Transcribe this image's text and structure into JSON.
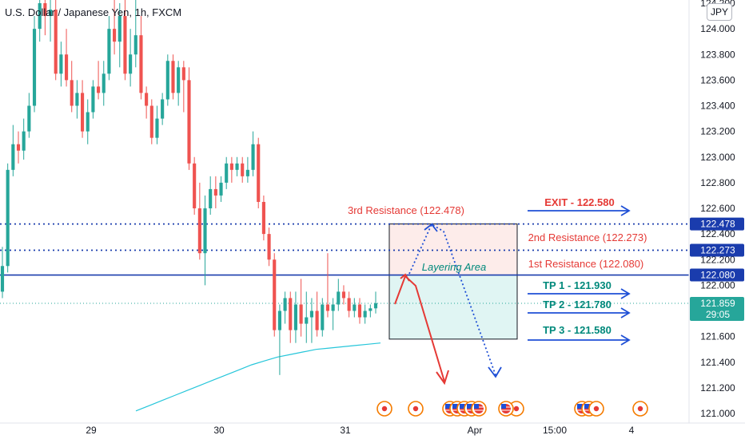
{
  "header": {
    "title": "U.S. Dollar / Japanese Yen, 1h, FXCM",
    "currency": "JPY"
  },
  "chart_data": {
    "type": "candlestick",
    "symbol": "USDJPY",
    "timeframe": "1h",
    "ylim": [
      121.0,
      124.2
    ],
    "y_ticks": [
      "121.000",
      "121.200",
      "121.400",
      "121.600",
      "121.800",
      "122.000",
      "122.200",
      "122.400",
      "122.600",
      "122.800",
      "123.000",
      "123.200",
      "123.400",
      "123.600",
      "123.800",
      "124.000",
      "124.200"
    ],
    "x_ticks": [
      "29",
      "30",
      "31",
      "Apr",
      "15:00",
      "4"
    ],
    "candles": [
      {
        "o": 121.95,
        "h": 122.3,
        "l": 121.9,
        "c": 122.15
      },
      {
        "o": 122.15,
        "h": 122.95,
        "l": 122.1,
        "c": 122.9
      },
      {
        "o": 122.9,
        "h": 123.25,
        "l": 122.85,
        "c": 123.1
      },
      {
        "o": 123.1,
        "h": 123.2,
        "l": 122.95,
        "c": 123.05
      },
      {
        "o": 123.05,
        "h": 123.3,
        "l": 122.98,
        "c": 123.2
      },
      {
        "o": 123.2,
        "h": 123.5,
        "l": 123.15,
        "c": 123.4
      },
      {
        "o": 123.4,
        "h": 124.1,
        "l": 123.35,
        "c": 124.0
      },
      {
        "o": 124.0,
        "h": 124.3,
        "l": 123.9,
        "c": 124.2
      },
      {
        "o": 124.2,
        "h": 124.3,
        "l": 123.95,
        "c": 124.1
      },
      {
        "o": 124.1,
        "h": 124.3,
        "l": 123.9,
        "c": 124.15
      },
      {
        "o": 124.15,
        "h": 124.25,
        "l": 123.6,
        "c": 123.65
      },
      {
        "o": 123.65,
        "h": 123.9,
        "l": 123.55,
        "c": 123.8
      },
      {
        "o": 123.8,
        "h": 124.0,
        "l": 123.55,
        "c": 123.6
      },
      {
        "o": 123.6,
        "h": 123.75,
        "l": 123.35,
        "c": 123.4
      },
      {
        "o": 123.4,
        "h": 123.6,
        "l": 123.3,
        "c": 123.5
      },
      {
        "o": 123.5,
        "h": 123.6,
        "l": 123.15,
        "c": 123.2
      },
      {
        "o": 123.2,
        "h": 123.45,
        "l": 123.1,
        "c": 123.35
      },
      {
        "o": 123.35,
        "h": 123.6,
        "l": 123.3,
        "c": 123.55
      },
      {
        "o": 123.55,
        "h": 123.75,
        "l": 123.45,
        "c": 123.5
      },
      {
        "o": 123.5,
        "h": 123.75,
        "l": 123.4,
        "c": 123.65
      },
      {
        "o": 123.65,
        "h": 124.1,
        "l": 123.6,
        "c": 124.0
      },
      {
        "o": 124.0,
        "h": 124.3,
        "l": 123.8,
        "c": 123.9
      },
      {
        "o": 123.9,
        "h": 124.2,
        "l": 123.7,
        "c": 124.1
      },
      {
        "o": 124.1,
        "h": 124.3,
        "l": 123.6,
        "c": 123.65
      },
      {
        "o": 123.65,
        "h": 124.0,
        "l": 123.55,
        "c": 123.8
      },
      {
        "o": 123.8,
        "h": 124.25,
        "l": 123.7,
        "c": 123.95
      },
      {
        "o": 123.95,
        "h": 124.1,
        "l": 123.45,
        "c": 123.5
      },
      {
        "o": 123.5,
        "h": 123.55,
        "l": 123.3,
        "c": 123.4
      },
      {
        "o": 123.4,
        "h": 123.45,
        "l": 123.1,
        "c": 123.15
      },
      {
        "o": 123.15,
        "h": 123.4,
        "l": 123.1,
        "c": 123.3
      },
      {
        "o": 123.3,
        "h": 123.5,
        "l": 123.25,
        "c": 123.45
      },
      {
        "o": 123.45,
        "h": 123.8,
        "l": 123.4,
        "c": 123.75
      },
      {
        "o": 123.75,
        "h": 123.8,
        "l": 123.45,
        "c": 123.5
      },
      {
        "o": 123.5,
        "h": 123.75,
        "l": 123.4,
        "c": 123.7
      },
      {
        "o": 123.7,
        "h": 123.75,
        "l": 123.35,
        "c": 123.6
      },
      {
        "o": 123.6,
        "h": 123.7,
        "l": 122.9,
        "c": 122.95
      },
      {
        "o": 122.95,
        "h": 123.0,
        "l": 122.55,
        "c": 122.6
      },
      {
        "o": 122.6,
        "h": 122.8,
        "l": 122.2,
        "c": 122.25
      },
      {
        "o": 122.25,
        "h": 122.7,
        "l": 122.0,
        "c": 122.6
      },
      {
        "o": 122.6,
        "h": 122.85,
        "l": 122.55,
        "c": 122.75
      },
      {
        "o": 122.75,
        "h": 122.85,
        "l": 122.6,
        "c": 122.7
      },
      {
        "o": 122.7,
        "h": 122.85,
        "l": 122.65,
        "c": 122.8
      },
      {
        "o": 122.8,
        "h": 123.0,
        "l": 122.75,
        "c": 122.95
      },
      {
        "o": 122.95,
        "h": 123.0,
        "l": 122.8,
        "c": 122.9
      },
      {
        "o": 122.9,
        "h": 123.0,
        "l": 122.85,
        "c": 122.95
      },
      {
        "o": 122.95,
        "h": 123.0,
        "l": 122.8,
        "c": 122.85
      },
      {
        "o": 122.85,
        "h": 123.0,
        "l": 122.8,
        "c": 122.9
      },
      {
        "o": 122.9,
        "h": 123.2,
        "l": 122.85,
        "c": 123.1
      },
      {
        "o": 123.1,
        "h": 123.15,
        "l": 122.6,
        "c": 122.65
      },
      {
        "o": 122.65,
        "h": 122.7,
        "l": 122.35,
        "c": 122.4
      },
      {
        "o": 122.4,
        "h": 122.45,
        "l": 122.15,
        "c": 122.2
      },
      {
        "o": 122.2,
        "h": 122.25,
        "l": 121.6,
        "c": 121.65
      },
      {
        "o": 121.65,
        "h": 121.85,
        "l": 121.3,
        "c": 121.8
      },
      {
        "o": 121.8,
        "h": 121.95,
        "l": 121.7,
        "c": 121.9
      },
      {
        "o": 121.9,
        "h": 121.95,
        "l": 121.55,
        "c": 121.65
      },
      {
        "o": 121.65,
        "h": 121.95,
        "l": 121.55,
        "c": 121.85
      },
      {
        "o": 121.85,
        "h": 122.05,
        "l": 121.6,
        "c": 121.7
      },
      {
        "o": 121.7,
        "h": 121.95,
        "l": 121.55,
        "c": 121.75
      },
      {
        "o": 121.75,
        "h": 121.9,
        "l": 121.55,
        "c": 121.8
      },
      {
        "o": 121.8,
        "h": 121.95,
        "l": 121.6,
        "c": 121.65
      },
      {
        "o": 121.65,
        "h": 121.9,
        "l": 121.6,
        "c": 121.85
      },
      {
        "o": 121.85,
        "h": 122.25,
        "l": 121.75,
        "c": 121.8
      },
      {
        "o": 121.8,
        "h": 121.9,
        "l": 121.65,
        "c": 121.85
      },
      {
        "o": 121.85,
        "h": 122.05,
        "l": 121.8,
        "c": 121.95
      },
      {
        "o": 121.95,
        "h": 122.0,
        "l": 121.85,
        "c": 121.9
      },
      {
        "o": 121.9,
        "h": 121.95,
        "l": 121.75,
        "c": 121.8
      },
      {
        "o": 121.8,
        "h": 121.9,
        "l": 121.75,
        "c": 121.85
      },
      {
        "o": 121.85,
        "h": 121.9,
        "l": 121.7,
        "c": 121.75
      },
      {
        "o": 121.75,
        "h": 121.85,
        "l": 121.7,
        "c": 121.8
      },
      {
        "o": 121.8,
        "h": 121.85,
        "l": 121.75,
        "c": 121.82
      },
      {
        "o": 121.82,
        "h": 121.95,
        "l": 121.78,
        "c": 121.86
      }
    ],
    "moving_average": {
      "color": "#26c6da",
      "values": [
        121.02,
        121.06,
        121.1,
        121.14,
        121.18,
        121.22,
        121.26,
        121.3,
        121.34,
        121.38,
        121.41,
        121.44,
        121.46,
        121.48,
        121.5,
        121.51,
        121.52,
        121.53,
        121.54,
        121.55
      ]
    },
    "horizontal_lines": [
      {
        "value": 122.478,
        "label": "122.478",
        "style": "dotted",
        "color": "#1a3cad"
      },
      {
        "value": 122.273,
        "label": "122.273",
        "style": "dotted",
        "color": "#1a3cad"
      },
      {
        "value": 122.08,
        "label": "122.080",
        "style": "solid",
        "color": "#1a3cad"
      }
    ],
    "current_price": {
      "value": 121.859,
      "label": "121.859",
      "countdown": "29:05",
      "color": "#26a69a"
    },
    "zones": [
      {
        "label": "",
        "y0": 122.478,
        "y1": 122.08,
        "color": "#fdecea"
      },
      {
        "label": "Layering Area",
        "y0": 122.08,
        "y1": 121.58,
        "color": "#e0f5f3"
      }
    ],
    "annotations": [
      {
        "text": "3rd Resistance (122.478)",
        "color": "#e53935"
      },
      {
        "text": "2nd Resistance (122.273)",
        "color": "#e53935"
      },
      {
        "text": "1st Resistance (122.080)",
        "color": "#e53935"
      },
      {
        "text": "EXIT - 122.580",
        "color": "#e53935"
      },
      {
        "text": "TP 1 - 121.930",
        "color": "#00897b"
      },
      {
        "text": "TP 2 - 121.780",
        "color": "#00897b"
      },
      {
        "text": "TP 3 - 121.580",
        "color": "#00897b"
      }
    ],
    "colors": {
      "up": "#26a69a",
      "down": "#ef5350",
      "level": "#1a3cad",
      "arrow_red": "#e53935",
      "arrow_blue": "#1e4fd6"
    }
  },
  "events": [
    "event",
    "event",
    "us-flag-event",
    "us-flag-event",
    "us-flag-event",
    "us-flag-event",
    "us-flag-event",
    "event",
    "us-flag-event",
    "us-flag-event",
    "us-flag-event",
    "event",
    "event"
  ]
}
